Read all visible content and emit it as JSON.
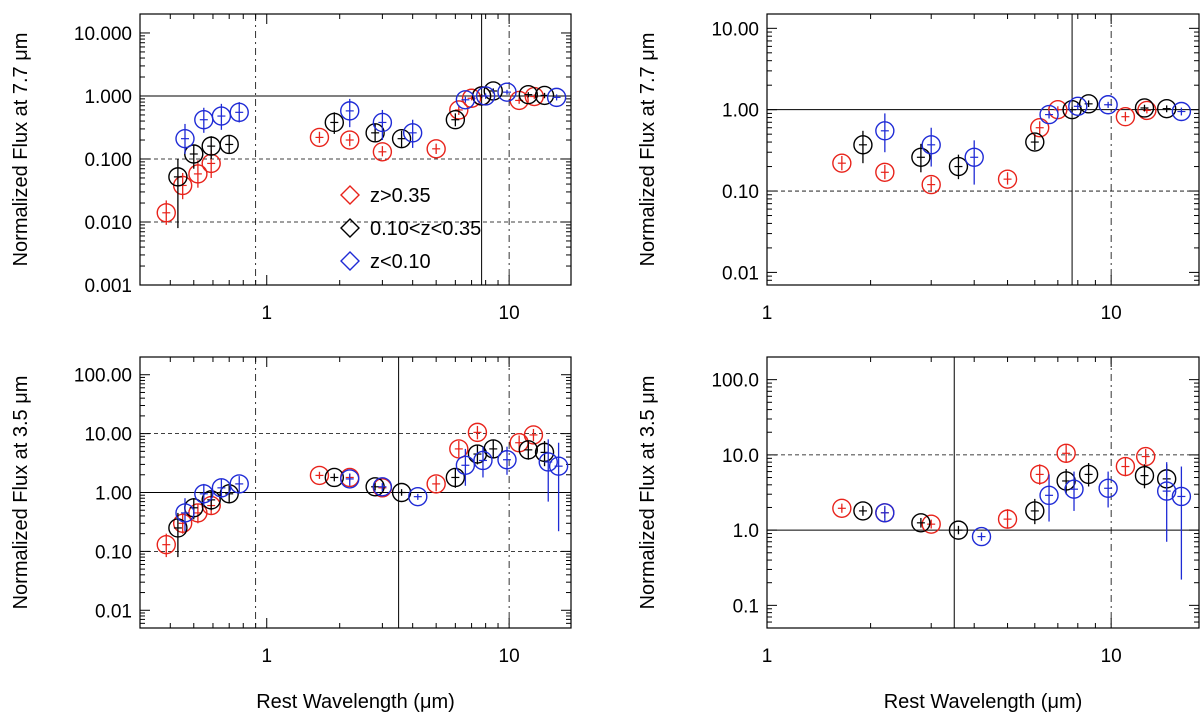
{
  "figure": {
    "xlabel": "Rest Wavelength (μm)",
    "colors": {
      "red": "#e8231b",
      "black": "#000000",
      "blue": "#1f2bd6"
    }
  },
  "legend": [
    {
      "label": "z>0.35",
      "color": "red"
    },
    {
      "label": "0.10<z<0.35",
      "color": "black"
    },
    {
      "label": "z<0.10",
      "color": "blue"
    }
  ],
  "chart_data": [
    {
      "id": "top-left",
      "type": "scatter",
      "ylabel": "Normalized Flux at 7.7 μm",
      "xscale": "log",
      "yscale": "log",
      "xlim": [
        0.3,
        18
      ],
      "ylim": [
        0.001,
        20
      ],
      "yticks": [
        0.001,
        0.01,
        0.1,
        1,
        10
      ],
      "ytick_labels": [
        "0.001",
        "0.010",
        "0.100",
        "1.000",
        "10.000"
      ],
      "xticks": [
        1,
        10
      ],
      "xtick_labels": [
        "1",
        "10"
      ],
      "show_xlabel": false,
      "legend": true,
      "vlines_solid": [
        7.7
      ],
      "vlines_dashed": [
        0.9,
        10
      ],
      "hlines_solid": [
        1
      ],
      "hlines_dashed": [
        0.1,
        0.01
      ],
      "series": [
        {
          "name": "z>0.35",
          "color": "red",
          "points": [
            [
              0.385,
              0.014,
              0.009,
              0.022
            ],
            [
              0.45,
              0.038,
              0.023,
              0.06
            ],
            [
              0.52,
              0.058,
              0.035,
              0.095
            ],
            [
              0.59,
              0.085,
              0.05,
              0.14
            ],
            [
              1.65,
              0.22,
              0.18,
              0.27
            ],
            [
              2.2,
              0.2,
              0.16,
              0.25
            ],
            [
              3.0,
              0.13,
              0.11,
              0.16
            ],
            [
              5.0,
              0.145,
              0.12,
              0.175
            ],
            [
              6.2,
              0.6,
              0.5,
              0.72
            ],
            [
              7.0,
              0.92,
              0.85,
              1.0
            ],
            [
              7.7,
              1.0,
              0.95,
              1.05
            ],
            [
              11.0,
              0.85,
              0.75,
              0.96
            ],
            [
              12.7,
              0.98,
              0.9,
              1.06
            ]
          ]
        },
        {
          "name": "0.10<z<0.35",
          "color": "black",
          "points": [
            [
              0.43,
              0.052,
              0.008,
              0.1
            ],
            [
              0.5,
              0.12,
              0.07,
              0.17
            ],
            [
              0.59,
              0.16,
              0.1,
              0.23
            ],
            [
              0.7,
              0.17,
              0.12,
              0.24
            ],
            [
              1.9,
              0.38,
              0.25,
              0.55
            ],
            [
              2.8,
              0.26,
              0.19,
              0.36
            ],
            [
              3.6,
              0.21,
              0.15,
              0.28
            ],
            [
              6.0,
              0.42,
              0.33,
              0.53
            ],
            [
              7.7,
              1.0,
              0.92,
              1.08
            ],
            [
              8.6,
              1.2,
              1.1,
              1.32
            ],
            [
              12.0,
              1.05,
              0.95,
              1.15
            ],
            [
              14.0,
              1.02,
              0.92,
              1.12
            ]
          ]
        },
        {
          "name": "z<0.10",
          "color": "blue",
          "points": [
            [
              0.46,
              0.21,
              0.12,
              0.36
            ],
            [
              0.55,
              0.42,
              0.26,
              0.65
            ],
            [
              0.65,
              0.48,
              0.29,
              0.75
            ],
            [
              0.77,
              0.55,
              0.38,
              0.8
            ],
            [
              2.2,
              0.58,
              0.32,
              0.9
            ],
            [
              3.0,
              0.38,
              0.2,
              0.6
            ],
            [
              4.0,
              0.26,
              0.15,
              0.42
            ],
            [
              6.6,
              0.87,
              0.78,
              0.97
            ],
            [
              8.0,
              1.0,
              0.9,
              1.1
            ],
            [
              9.8,
              1.15,
              1.05,
              1.25
            ],
            [
              15.7,
              0.95,
              0.85,
              1.06
            ]
          ]
        }
      ]
    },
    {
      "id": "top-right",
      "type": "scatter",
      "ylabel": "Normalized Flux at 7.7 μm",
      "xscale": "log",
      "yscale": "log",
      "xlim": [
        1,
        18
      ],
      "ylim": [
        0.007,
        15
      ],
      "yticks": [
        0.01,
        0.1,
        1,
        10
      ],
      "ytick_labels": [
        "0.01",
        "0.10",
        "1.00",
        "10.00"
      ],
      "xticks": [
        1,
        10
      ],
      "xtick_labels": [
        "1",
        "10"
      ],
      "show_xlabel": false,
      "legend": false,
      "vlines_solid": [
        7.7
      ],
      "vlines_dashed": [
        10
      ],
      "hlines_solid": [
        1
      ],
      "hlines_dashed": [
        0.1
      ],
      "series": [
        {
          "name": "z>0.35",
          "color": "red",
          "points": [
            [
              1.65,
              0.22,
              0.18,
              0.27
            ],
            [
              2.2,
              0.17,
              0.14,
              0.21
            ],
            [
              3.0,
              0.12,
              0.1,
              0.15
            ],
            [
              5.0,
              0.14,
              0.12,
              0.17
            ],
            [
              6.2,
              0.6,
              0.5,
              0.72
            ],
            [
              7.0,
              1.0,
              0.9,
              1.1
            ],
            [
              11.0,
              0.82,
              0.72,
              0.94
            ],
            [
              12.7,
              0.98,
              0.9,
              1.06
            ]
          ]
        },
        {
          "name": "0.10<z<0.35",
          "color": "black",
          "points": [
            [
              1.9,
              0.37,
              0.22,
              0.55
            ],
            [
              2.8,
              0.26,
              0.17,
              0.38
            ],
            [
              3.6,
              0.2,
              0.14,
              0.28
            ],
            [
              6.0,
              0.4,
              0.32,
              0.5
            ],
            [
              7.7,
              1.0,
              0.92,
              1.08
            ],
            [
              8.6,
              1.18,
              1.08,
              1.3
            ],
            [
              12.5,
              1.05,
              0.95,
              1.15
            ],
            [
              14.5,
              1.03,
              0.93,
              1.13
            ]
          ]
        },
        {
          "name": "z<0.10",
          "color": "blue",
          "points": [
            [
              2.2,
              0.55,
              0.3,
              0.9
            ],
            [
              3.0,
              0.37,
              0.2,
              0.6
            ],
            [
              4.0,
              0.26,
              0.12,
              0.42
            ],
            [
              6.6,
              0.87,
              0.78,
              0.97
            ],
            [
              8.0,
              1.1,
              1.0,
              1.2
            ],
            [
              9.8,
              1.15,
              1.05,
              1.25
            ],
            [
              16.0,
              0.95,
              0.85,
              1.06
            ]
          ]
        }
      ]
    },
    {
      "id": "bottom-left",
      "type": "scatter",
      "ylabel": "Normalized Flux at 3.5 μm",
      "xscale": "log",
      "yscale": "log",
      "xlim": [
        0.3,
        18
      ],
      "ylim": [
        0.005,
        200
      ],
      "yticks": [
        0.01,
        0.1,
        1,
        10,
        100
      ],
      "ytick_labels": [
        "0.01",
        "0.10",
        "1.00",
        "10.00",
        "100.00"
      ],
      "xticks": [
        1,
        10
      ],
      "xtick_labels": [
        "1",
        "10"
      ],
      "show_xlabel": true,
      "legend": false,
      "vlines_solid": [
        3.5
      ],
      "vlines_dashed": [
        0.9,
        10
      ],
      "hlines_solid": [
        1
      ],
      "hlines_dashed": [
        10,
        0.1
      ],
      "series": [
        {
          "name": "z>0.35",
          "color": "red",
          "points": [
            [
              0.385,
              0.13,
              0.08,
              0.2
            ],
            [
              0.45,
              0.3,
              0.2,
              0.45
            ],
            [
              0.52,
              0.45,
              0.3,
              0.65
            ],
            [
              0.59,
              0.6,
              0.42,
              0.85
            ],
            [
              1.65,
              1.95,
              1.7,
              2.25
            ],
            [
              2.2,
              1.8,
              1.55,
              2.1
            ],
            [
              3.0,
              1.2,
              1.05,
              1.38
            ],
            [
              5.0,
              1.4,
              1.05,
              1.9
            ],
            [
              6.2,
              5.5,
              4.0,
              7.5
            ],
            [
              7.4,
              10.5,
              8.0,
              13.5
            ],
            [
              11.0,
              7.0,
              5.2,
              9.3
            ],
            [
              12.6,
              9.5,
              7.5,
              12.0
            ]
          ]
        },
        {
          "name": "0.10<z<0.35",
          "color": "black",
          "points": [
            [
              0.43,
              0.25,
              0.08,
              0.45
            ],
            [
              0.5,
              0.55,
              0.35,
              0.8
            ],
            [
              0.59,
              0.75,
              0.5,
              1.05
            ],
            [
              0.7,
              0.95,
              0.65,
              1.3
            ],
            [
              1.9,
              1.8,
              1.55,
              2.1
            ],
            [
              2.8,
              1.25,
              1.08,
              1.45
            ],
            [
              3.6,
              1.0,
              0.88,
              1.14
            ],
            [
              6.0,
              1.8,
              1.2,
              2.6
            ],
            [
              7.4,
              4.5,
              3.0,
              6.5
            ],
            [
              8.6,
              5.5,
              3.8,
              7.8
            ],
            [
              12.0,
              5.3,
              3.6,
              7.5
            ],
            [
              14.0,
              4.8,
              2.8,
              7.5
            ]
          ]
        },
        {
          "name": "z<0.10",
          "color": "blue",
          "points": [
            [
              0.46,
              0.45,
              0.22,
              0.8
            ],
            [
              0.55,
              0.95,
              0.6,
              1.4
            ],
            [
              0.65,
              1.2,
              0.8,
              1.7
            ],
            [
              0.77,
              1.4,
              1.0,
              1.9
            ],
            [
              2.2,
              1.7,
              1.3,
              2.1
            ],
            [
              3.0,
              1.25,
              1.05,
              1.45
            ],
            [
              4.2,
              0.85,
              0.75,
              0.95
            ],
            [
              6.6,
              2.9,
              1.3,
              5.5
            ],
            [
              7.8,
              3.5,
              1.8,
              6.0
            ],
            [
              9.8,
              3.6,
              2.0,
              6.0
            ],
            [
              14.5,
              3.3,
              0.7,
              8.0
            ],
            [
              16.0,
              2.8,
              0.22,
              7.0
            ]
          ]
        }
      ]
    },
    {
      "id": "bottom-right",
      "type": "scatter",
      "ylabel": "Normalized Flux at 3.5 μm",
      "xscale": "log",
      "yscale": "log",
      "xlim": [
        1,
        18
      ],
      "ylim": [
        0.05,
        200
      ],
      "yticks": [
        0.1,
        1,
        10,
        100
      ],
      "ytick_labels": [
        "0.1",
        "1.0",
        "10.0",
        "100.0"
      ],
      "xticks": [
        1,
        10
      ],
      "xtick_labels": [
        "1",
        "10"
      ],
      "show_xlabel": true,
      "legend": false,
      "vlines_solid": [
        3.5
      ],
      "vlines_dashed": [
        10
      ],
      "hlines_solid": [
        1
      ],
      "hlines_dashed": [
        10
      ],
      "series": [
        {
          "name": "z>0.35",
          "color": "red",
          "points": [
            [
              1.65,
              1.95,
              1.7,
              2.25
            ],
            [
              2.2,
              1.7,
              1.45,
              2.0
            ],
            [
              3.0,
              1.2,
              1.05,
              1.38
            ],
            [
              5.0,
              1.4,
              1.05,
              1.9
            ],
            [
              6.2,
              5.5,
              4.0,
              7.5
            ],
            [
              7.4,
              10.5,
              8.0,
              13.5
            ],
            [
              11.0,
              7.0,
              5.2,
              9.3
            ],
            [
              12.6,
              9.5,
              7.5,
              12.0
            ]
          ]
        },
        {
          "name": "0.10<z<0.35",
          "color": "black",
          "points": [
            [
              1.9,
              1.8,
              1.55,
              2.1
            ],
            [
              2.8,
              1.25,
              1.08,
              1.45
            ],
            [
              3.6,
              1.0,
              0.88,
              1.14
            ],
            [
              6.0,
              1.8,
              1.2,
              2.6
            ],
            [
              7.4,
              4.5,
              3.0,
              6.5
            ],
            [
              8.6,
              5.5,
              3.8,
              7.8
            ],
            [
              12.5,
              5.3,
              3.6,
              7.5
            ],
            [
              14.5,
              4.8,
              2.8,
              7.5
            ]
          ]
        },
        {
          "name": "z<0.10",
          "color": "blue",
          "points": [
            [
              2.2,
              1.7,
              1.3,
              2.1
            ],
            [
              4.2,
              0.82,
              0.72,
              0.93
            ],
            [
              6.6,
              2.9,
              1.3,
              5.5
            ],
            [
              7.8,
              3.5,
              1.8,
              6.0
            ],
            [
              9.8,
              3.6,
              2.0,
              6.0
            ],
            [
              14.5,
              3.3,
              0.7,
              8.0
            ],
            [
              16.0,
              2.8,
              0.22,
              7.0
            ]
          ]
        }
      ]
    }
  ]
}
